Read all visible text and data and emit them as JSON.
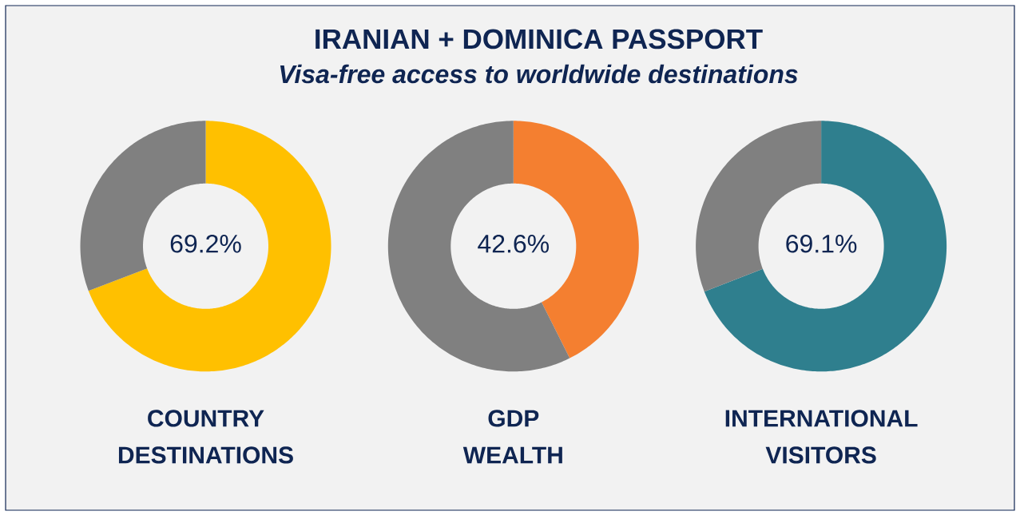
{
  "chart_data": [
    {
      "type": "donut",
      "xlabel": "COUNTRY DESTINATIONS",
      "categories": [
        null,
        null
      ],
      "values": [
        69.2,
        30.8
      ],
      "colors": [
        "#ffc000",
        "#808080"
      ],
      "value_labels": [
        "69.2%",
        null
      ]
    },
    {
      "type": "donut",
      "title": "IRANIAN + DOMINICA PASSPORT",
      "subtitle": "Visa-free access to worldwide destinations",
      "xlabel": "GDP WEALTH",
      "categories": [
        null,
        null
      ],
      "values": [
        42.6,
        57.4
      ],
      "colors": [
        "#f47f30",
        "#808080"
      ],
      "value_labels": [
        "42.6%",
        null
      ]
    },
    {
      "type": "donut",
      "xlabel": "INTERNATIONAL VISITORS",
      "categories": [
        null,
        null
      ],
      "values": [
        69.1,
        30.9
      ],
      "colors": [
        "#2f7f8e",
        "#808080"
      ],
      "value_labels": [
        "69.1%",
        null
      ]
    }
  ]
}
